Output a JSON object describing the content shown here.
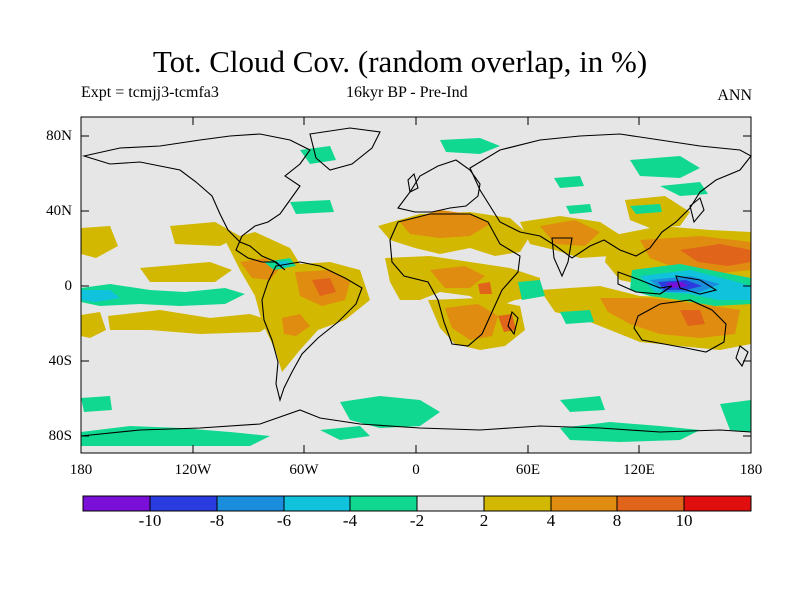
{
  "title": "Tot. Cloud Cov. (random overlap, in %)",
  "subtitle_left": "Expt = tcmjj3-tcmfa3",
  "subtitle_center": "16kyr BP - Pre-Ind",
  "subtitle_right": "ANN",
  "lat_labels": [
    "80N",
    "40N",
    "0",
    "40S",
    "80S"
  ],
  "lon_labels": [
    "180",
    "120W",
    "60W",
    "0",
    "60E",
    "120E",
    "180"
  ],
  "colorbar": {
    "colors": [
      "#7a10d8",
      "#2a3ce0",
      "#1a8edc",
      "#10c2dc",
      "#10d890",
      "#e6e6e6",
      "#d2b800",
      "#e08c10",
      "#e0641a",
      "#e00e0e"
    ],
    "tick_labels": [
      "-10",
      "-8",
      "-6",
      "-4",
      "-2",
      "2",
      "4",
      "8",
      "10"
    ]
  },
  "map": {
    "background": "#e6e6e6",
    "coastline_color": "#000000"
  }
}
